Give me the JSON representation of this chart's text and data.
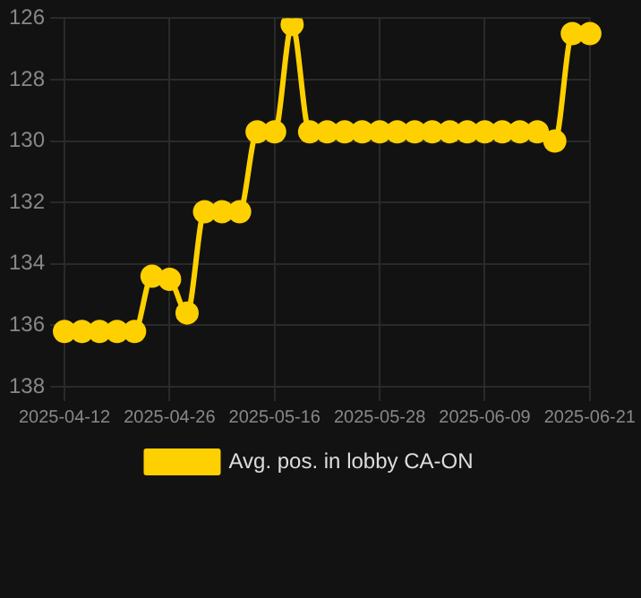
{
  "chart_data": {
    "type": "line",
    "categories": [
      "2025-04-12",
      null,
      null,
      null,
      null,
      null,
      "2025-04-26",
      null,
      null,
      null,
      null,
      null,
      "2025-05-16",
      null,
      null,
      null,
      null,
      null,
      "2025-05-28",
      null,
      null,
      null,
      null,
      null,
      "2025-06-09",
      null,
      null,
      null,
      null,
      null,
      "2025-06-21"
    ],
    "series": [
      {
        "name": "Avg. pos. in lobby CA-ON",
        "color": "#ffd000",
        "values": [
          136.2,
          136.2,
          136.2,
          136.2,
          136.2,
          134.4,
          134.5,
          135.6,
          132.3,
          132.3,
          132.3,
          129.7,
          129.7,
          126.2,
          129.7,
          129.7,
          129.7,
          129.7,
          129.7,
          129.7,
          129.7,
          129.7,
          129.7,
          129.7,
          129.7,
          129.7,
          129.7,
          129.7,
          130.0,
          126.5,
          126.5
        ]
      }
    ],
    "ylim": [
      138,
      126
    ],
    "yticks": [
      126,
      128,
      130,
      132,
      134,
      136,
      138
    ],
    "grid": true,
    "legend": "bottom",
    "marker": "circle"
  }
}
